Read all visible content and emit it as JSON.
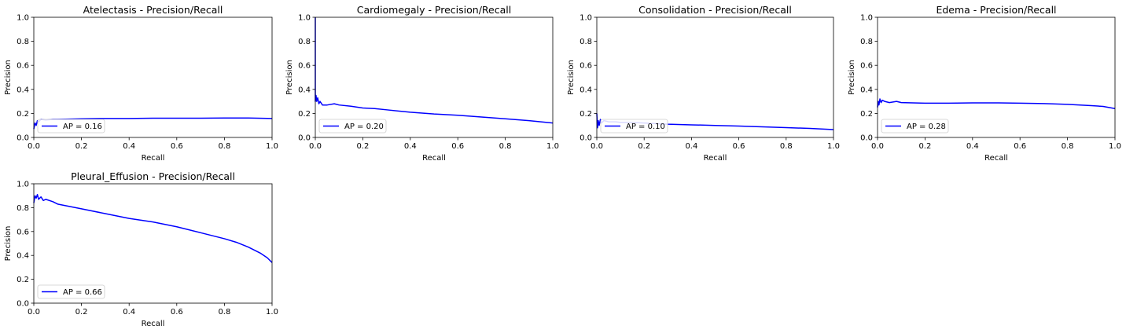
{
  "chart_data": [
    {
      "type": "line",
      "title": "Atelectasis - Precision/Recall",
      "xlabel": "Recall",
      "ylabel": "Precision",
      "xlim": [
        0,
        1
      ],
      "ylim": [
        0,
        1
      ],
      "xticks": [
        "0.0",
        "0.2",
        "0.4",
        "0.6",
        "0.8",
        "1.0"
      ],
      "yticks": [
        "0.0",
        "0.2",
        "0.4",
        "0.6",
        "0.8",
        "1.0"
      ],
      "legend": "lower left",
      "color": "#0000ff",
      "series": [
        {
          "name": "AP = 0.16",
          "x": [
            0.0,
            0.005,
            0.01,
            0.015,
            0.02,
            0.03,
            0.05,
            0.08,
            0.1,
            0.2,
            0.3,
            0.4,
            0.5,
            0.6,
            0.7,
            0.8,
            0.9,
            1.0
          ],
          "y": [
            0.07,
            0.12,
            0.1,
            0.14,
            0.13,
            0.15,
            0.145,
            0.15,
            0.15,
            0.155,
            0.158,
            0.158,
            0.16,
            0.16,
            0.16,
            0.162,
            0.162,
            0.158
          ]
        }
      ]
    },
    {
      "type": "line",
      "title": "Cardiomegaly - Precision/Recall",
      "xlabel": "Recall",
      "ylabel": "Precision",
      "xlim": [
        0,
        1
      ],
      "ylim": [
        0,
        1
      ],
      "xticks": [
        "0.0",
        "0.2",
        "0.4",
        "0.6",
        "0.8",
        "1.0"
      ],
      "yticks": [
        "0.0",
        "0.2",
        "0.4",
        "0.6",
        "0.8",
        "1.0"
      ],
      "legend": "lower left",
      "color": "#0000ff",
      "series": [
        {
          "name": "AP = 0.20",
          "x": [
            0.0,
            0.0,
            0.003,
            0.006,
            0.01,
            0.015,
            0.02,
            0.03,
            0.05,
            0.08,
            0.1,
            0.15,
            0.2,
            0.25,
            0.3,
            0.4,
            0.5,
            0.6,
            0.7,
            0.8,
            0.9,
            1.0
          ],
          "y": [
            1.0,
            0.3,
            0.35,
            0.3,
            0.33,
            0.28,
            0.3,
            0.27,
            0.27,
            0.28,
            0.27,
            0.26,
            0.245,
            0.24,
            0.23,
            0.21,
            0.195,
            0.185,
            0.17,
            0.155,
            0.14,
            0.12
          ]
        }
      ]
    },
    {
      "type": "line",
      "title": "Consolidation - Precision/Recall",
      "xlabel": "Recall",
      "ylabel": "Precision",
      "xlim": [
        0,
        1
      ],
      "ylim": [
        0,
        1
      ],
      "xticks": [
        "0.0",
        "0.2",
        "0.4",
        "0.6",
        "0.8",
        "1.0"
      ],
      "yticks": [
        "0.0",
        "0.2",
        "0.4",
        "0.6",
        "0.8",
        "1.0"
      ],
      "legend": "lower left",
      "color": "#0000ff",
      "series": [
        {
          "name": "AP = 0.10",
          "x": [
            0.0,
            0.003,
            0.006,
            0.01,
            0.015,
            0.02,
            0.03,
            0.05,
            0.08,
            0.1,
            0.15,
            0.2,
            0.3,
            0.4,
            0.5,
            0.6,
            0.7,
            0.8,
            0.9,
            1.0
          ],
          "y": [
            0.2,
            0.08,
            0.14,
            0.1,
            0.15,
            0.12,
            0.14,
            0.13,
            0.13,
            0.125,
            0.125,
            0.12,
            0.11,
            0.105,
            0.1,
            0.095,
            0.088,
            0.082,
            0.075,
            0.065
          ]
        }
      ]
    },
    {
      "type": "line",
      "title": "Edema - Precision/Recall",
      "xlabel": "Recall",
      "ylabel": "Precision",
      "xlim": [
        0,
        1
      ],
      "ylim": [
        0,
        1
      ],
      "xticks": [
        "0.0",
        "0.2",
        "0.4",
        "0.6",
        "0.8",
        "1.0"
      ],
      "yticks": [
        "0.0",
        "0.2",
        "0.4",
        "0.6",
        "0.8",
        "1.0"
      ],
      "legend": "lower left",
      "color": "#0000ff",
      "series": [
        {
          "name": "AP = 0.28",
          "x": [
            0.0,
            0.003,
            0.006,
            0.01,
            0.015,
            0.02,
            0.03,
            0.05,
            0.08,
            0.1,
            0.2,
            0.3,
            0.4,
            0.5,
            0.6,
            0.7,
            0.8,
            0.9,
            0.95,
            1.0
          ],
          "y": [
            0.25,
            0.3,
            0.27,
            0.32,
            0.29,
            0.31,
            0.3,
            0.29,
            0.3,
            0.29,
            0.285,
            0.285,
            0.288,
            0.288,
            0.285,
            0.282,
            0.275,
            0.265,
            0.258,
            0.24
          ]
        }
      ]
    },
    {
      "type": "line",
      "title": "Pleural_Effusion - Precision/Recall",
      "xlabel": "Recall",
      "ylabel": "Precision",
      "xlim": [
        0,
        1
      ],
      "ylim": [
        0,
        1
      ],
      "xticks": [
        "0.0",
        "0.2",
        "0.4",
        "0.6",
        "0.8",
        "1.0"
      ],
      "yticks": [
        "0.0",
        "0.2",
        "0.4",
        "0.6",
        "0.8",
        "1.0"
      ],
      "legend": "lower left",
      "color": "#0000ff",
      "series": [
        {
          "name": "AP = 0.66",
          "x": [
            0.0,
            0.005,
            0.01,
            0.015,
            0.02,
            0.03,
            0.04,
            0.05,
            0.08,
            0.1,
            0.15,
            0.2,
            0.3,
            0.4,
            0.5,
            0.6,
            0.7,
            0.8,
            0.85,
            0.9,
            0.95,
            0.98,
            1.0
          ],
          "y": [
            0.84,
            0.9,
            0.88,
            0.91,
            0.87,
            0.89,
            0.86,
            0.87,
            0.85,
            0.83,
            0.81,
            0.79,
            0.75,
            0.71,
            0.68,
            0.64,
            0.59,
            0.54,
            0.51,
            0.47,
            0.42,
            0.38,
            0.34
          ]
        }
      ]
    }
  ]
}
